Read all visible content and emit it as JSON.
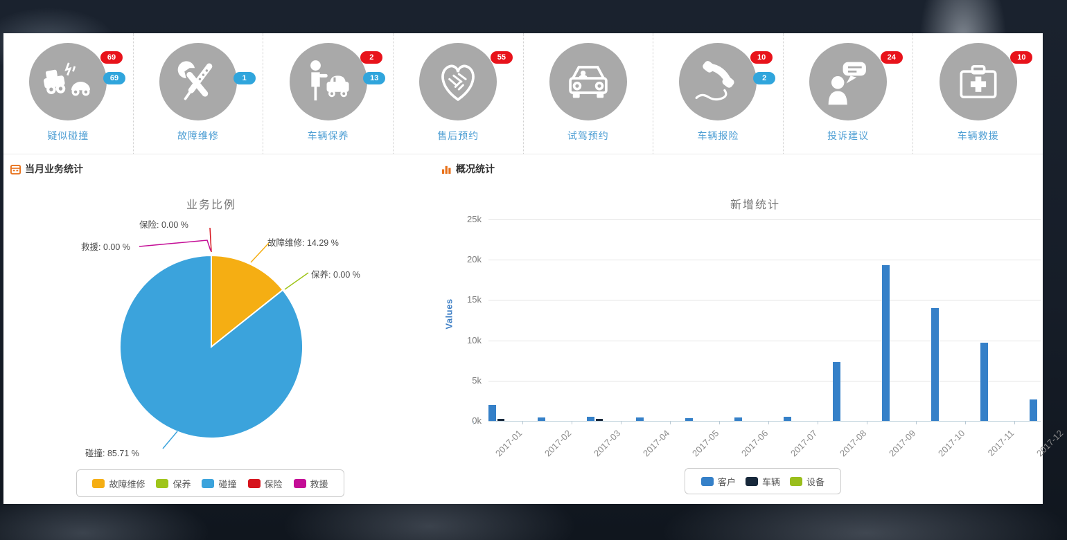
{
  "colors": {
    "badge_red": "#e8131b",
    "badge_blue": "#30a5dc",
    "service_icon_bg": "#a9a9a9",
    "service_label": "#4f9fd4",
    "header_icon_orange": "#e8711a",
    "axis_label_blue": "#3b7dc4"
  },
  "services": [
    {
      "label": "疑似碰撞",
      "icon": "car-crash-icon",
      "badges": [
        {
          "value": "69",
          "color": "red"
        },
        {
          "value": "69",
          "color": "blue"
        }
      ]
    },
    {
      "label": "故障维修",
      "icon": "repair-tools-icon",
      "badges": [
        {
          "value": "1",
          "color": "blue"
        }
      ]
    },
    {
      "label": "车辆保养",
      "icon": "valet-car-icon",
      "badges": [
        {
          "value": "2",
          "color": "red"
        },
        {
          "value": "13",
          "color": "blue"
        }
      ]
    },
    {
      "label": "售后预约",
      "icon": "handshake-heart-icon",
      "badges": [
        {
          "value": "55",
          "color": "red"
        }
      ]
    },
    {
      "label": "试驾预约",
      "icon": "car-front-icon",
      "badges": []
    },
    {
      "label": "车辆报险",
      "icon": "phone-handset-icon",
      "badges": [
        {
          "value": "10",
          "color": "red"
        },
        {
          "value": "2",
          "color": "blue"
        }
      ]
    },
    {
      "label": "投诉建议",
      "icon": "feedback-person-icon",
      "badges": [
        {
          "value": "24",
          "color": "red"
        }
      ]
    },
    {
      "label": "车辆救援",
      "icon": "first-aid-kit-icon",
      "badges": [
        {
          "value": "10",
          "color": "red"
        }
      ]
    }
  ],
  "left_panel": {
    "header": "当月业务统计"
  },
  "right_panel": {
    "header": "概况统计"
  },
  "chart_data": [
    {
      "type": "pie",
      "title": "业务比例",
      "slices": [
        {
          "label": "故障维修",
          "value": 14.29,
          "color": "#f5ae13",
          "callout": "故障维修: 14.29 %"
        },
        {
          "label": "保养",
          "value": 0.0,
          "color": "#9fc51a",
          "callout": "保养: 0.00 %"
        },
        {
          "label": "碰撞",
          "value": 85.71,
          "color": "#3ba3dc",
          "callout": "碰撞: 85.71 %"
        },
        {
          "label": "保险",
          "value": 0.0,
          "color": "#d6131c",
          "callout": "保险: 0.00 %"
        },
        {
          "label": "救援",
          "value": 0.0,
          "color": "#c40d96",
          "callout": "救援: 0.00 %"
        }
      ],
      "legend_position": "bottom"
    },
    {
      "type": "bar",
      "title": "新增统计",
      "ylabel": "Values",
      "ylim": [
        0,
        25000
      ],
      "yticks": [
        "25k",
        "20k",
        "15k",
        "10k",
        "5k",
        "0k"
      ],
      "categories": [
        "2017-01",
        "2017-02",
        "2017-03",
        "2017-04",
        "2017-05",
        "2017-06",
        "2017-07",
        "2017-08",
        "2017-09",
        "2017-10",
        "2017-11",
        "2017-12"
      ],
      "series": [
        {
          "name": "客户",
          "color": "#3580c8",
          "values": [
            2000,
            400,
            500,
            400,
            350,
            450,
            500,
            7300,
            19300,
            14000,
            9700,
            2700
          ]
        },
        {
          "name": "车辆",
          "color": "#17283b",
          "values": [
            300,
            0,
            300,
            0,
            0,
            0,
            0,
            0,
            0,
            0,
            0,
            0
          ]
        },
        {
          "name": "设备",
          "color": "#9abe1c",
          "values": [
            0,
            0,
            0,
            0,
            0,
            0,
            0,
            0,
            0,
            0,
            0,
            0
          ]
        }
      ],
      "legend_position": "bottom"
    }
  ]
}
